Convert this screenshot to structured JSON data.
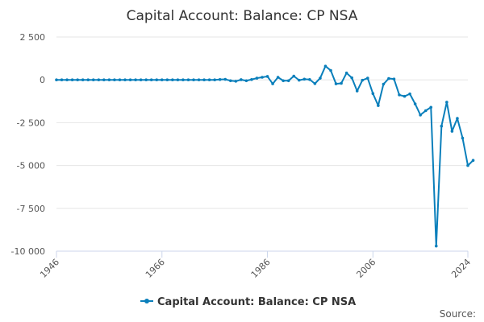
{
  "chart_data": {
    "type": "line",
    "title": "Capital Account: Balance: CP NSA",
    "xlabel": "",
    "ylabel": "",
    "series_color": "#0a7fbb",
    "ylim": [
      -10000,
      2500
    ],
    "xlim": [
      1946,
      2024
    ],
    "y_ticks": [
      2500,
      0,
      -2500,
      -5000,
      -7500,
      -10000
    ],
    "y_tick_labels": [
      "2 500",
      "0",
      "-2 500",
      "-5 000",
      "-7 500",
      "-10 000"
    ],
    "x_ticks": [
      1946,
      1966,
      1986,
      2006,
      2024
    ],
    "x_tick_labels": [
      "1946",
      "1966",
      "1986",
      "2006",
      "2024"
    ],
    "grid": true,
    "legend_position": "bottom",
    "series": [
      {
        "name": "Capital Account: Balance: CP NSA",
        "points": [
          [
            1946,
            0
          ],
          [
            1947,
            0
          ],
          [
            1948,
            0
          ],
          [
            1949,
            0
          ],
          [
            1950,
            0
          ],
          [
            1951,
            0
          ],
          [
            1952,
            0
          ],
          [
            1953,
            0
          ],
          [
            1954,
            0
          ],
          [
            1955,
            0
          ],
          [
            1956,
            0
          ],
          [
            1957,
            0
          ],
          [
            1958,
            0
          ],
          [
            1959,
            0
          ],
          [
            1960,
            0
          ],
          [
            1961,
            0
          ],
          [
            1962,
            0
          ],
          [
            1963,
            0
          ],
          [
            1964,
            0
          ],
          [
            1965,
            0
          ],
          [
            1966,
            0
          ],
          [
            1967,
            0
          ],
          [
            1968,
            0
          ],
          [
            1969,
            0
          ],
          [
            1970,
            0
          ],
          [
            1971,
            0
          ],
          [
            1972,
            0
          ],
          [
            1973,
            0
          ],
          [
            1974,
            0
          ],
          [
            1975,
            0
          ],
          [
            1976,
            0
          ],
          [
            1977,
            20
          ],
          [
            1978,
            30
          ],
          [
            1979,
            -50
          ],
          [
            1980,
            -80
          ],
          [
            1981,
            10
          ],
          [
            1982,
            -50
          ],
          [
            1983,
            20
          ],
          [
            1984,
            100
          ],
          [
            1985,
            150
          ],
          [
            1986,
            200
          ],
          [
            1987,
            -230
          ],
          [
            1988,
            150
          ],
          [
            1989,
            -50
          ],
          [
            1990,
            -50
          ],
          [
            1991,
            220
          ],
          [
            1992,
            -20
          ],
          [
            1993,
            40
          ],
          [
            1994,
            20
          ],
          [
            1995,
            -220
          ],
          [
            1996,
            100
          ],
          [
            1997,
            800
          ],
          [
            1998,
            550
          ],
          [
            1999,
            -230
          ],
          [
            2000,
            -200
          ],
          [
            2001,
            400
          ],
          [
            2002,
            120
          ],
          [
            2003,
            -650
          ],
          [
            2004,
            -20
          ],
          [
            2005,
            100
          ],
          [
            2006,
            -800
          ],
          [
            2007,
            -1500
          ],
          [
            2008,
            -250
          ],
          [
            2009,
            80
          ],
          [
            2010,
            50
          ],
          [
            2011,
            -880
          ],
          [
            2012,
            -960
          ],
          [
            2013,
            -820
          ],
          [
            2014,
            -1400
          ],
          [
            2015,
            -2050
          ],
          [
            2016,
            -1800
          ],
          [
            2017,
            -1600
          ],
          [
            2018,
            -9700
          ],
          [
            2019,
            -2700
          ],
          [
            2020,
            -1300
          ],
          [
            2021,
            -3000
          ],
          [
            2022,
            -2250
          ],
          [
            2023,
            -3400
          ],
          [
            2024,
            -5000
          ],
          [
            2025,
            -4700
          ]
        ]
      }
    ],
    "legend_label": "Capital Account: Balance: CP NSA",
    "credits": "Source:"
  }
}
